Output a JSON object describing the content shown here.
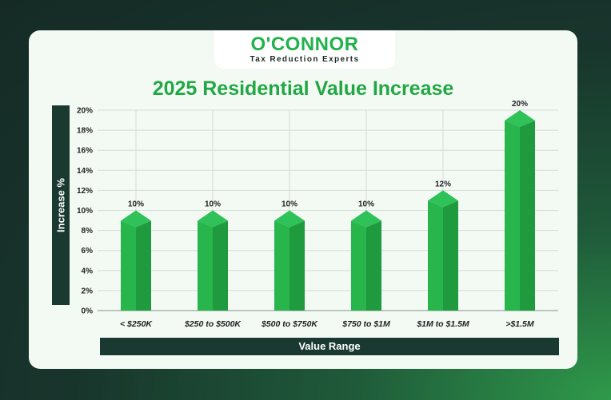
{
  "brand": {
    "name": "O'CONNOR",
    "tagline": "Tax Reduction Experts"
  },
  "colors": {
    "bar_front": "#27b54c",
    "bar_side": "#1f9a3e",
    "bar_cap": "#2ec258",
    "accent": "#22a744",
    "label_bar": "#1a3a31"
  },
  "chart_data": {
    "type": "bar",
    "title": "2025 Residential Value Increase",
    "xlabel": "Value Range",
    "ylabel": "Increase %",
    "categories": [
      "< $250K",
      "$250 to $500K",
      "$500 to $750K",
      "$750 to $1M",
      "$1M to $1.5M",
      ">$1.5M"
    ],
    "values": [
      10,
      10,
      10,
      10,
      12,
      20
    ],
    "data_labels": [
      "10%",
      "10%",
      "10%",
      "10%",
      "12%",
      "20%"
    ],
    "yticks": [
      "0%",
      "2%",
      "4%",
      "6%",
      "8%",
      "10%",
      "12%",
      "14%",
      "16%",
      "18%",
      "20%"
    ],
    "ylim": [
      0,
      20
    ],
    "grid": true,
    "legend": "none"
  }
}
